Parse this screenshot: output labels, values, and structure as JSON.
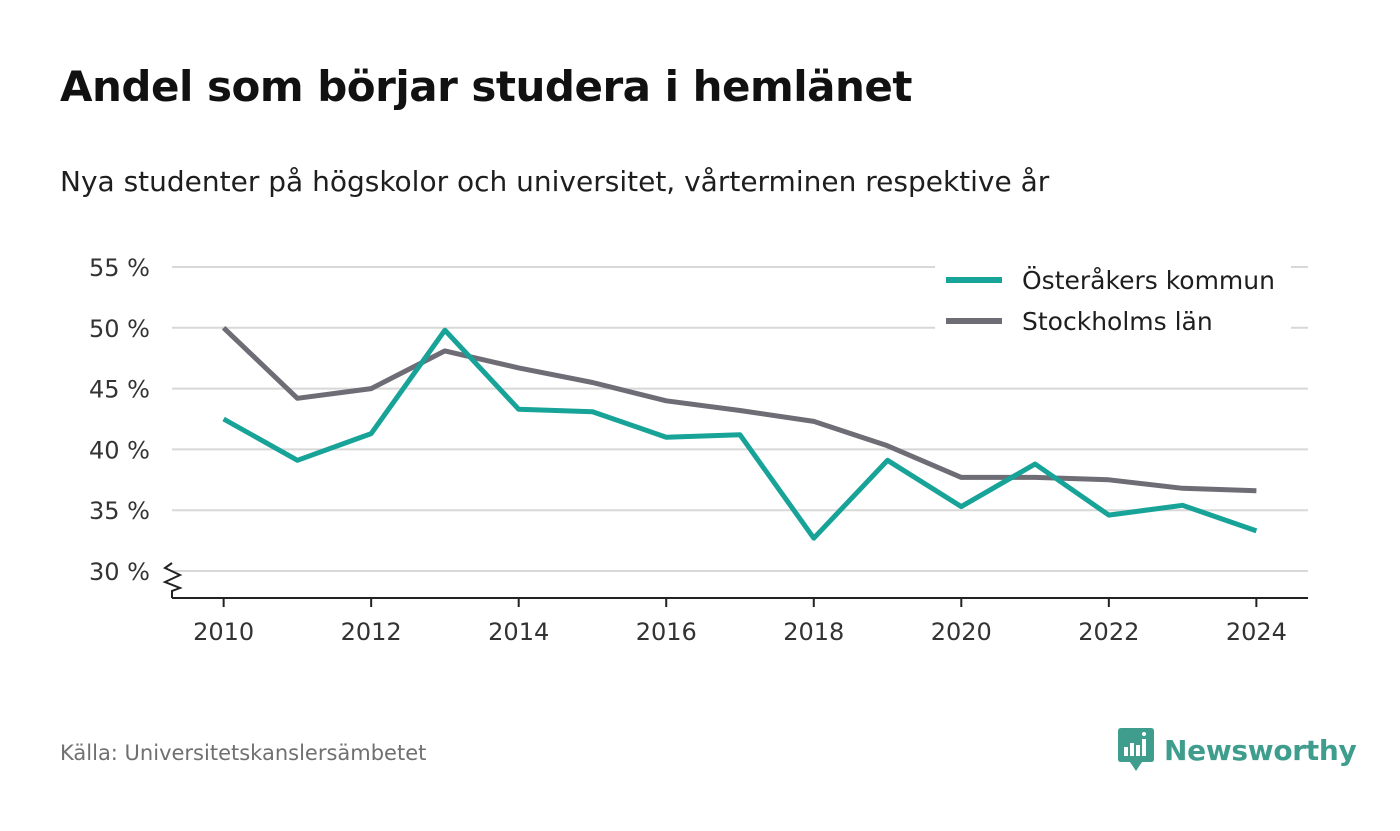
{
  "title": "Andel som börjar studera i hemlänet",
  "subtitle": "Nya studenter på högskolor och universitet, vårterminen respektive år",
  "source": "Källa: Universitetskanslersämbetet",
  "brand": {
    "name": "Newsworthy",
    "icon": "newsworthy-logo-icon",
    "color": "#3f9d8e"
  },
  "chart_data": {
    "type": "line",
    "x": [
      2010,
      2011,
      2012,
      2013,
      2014,
      2015,
      2016,
      2017,
      2018,
      2019,
      2020,
      2021,
      2022,
      2023,
      2024
    ],
    "xticks": [
      2010,
      2012,
      2014,
      2016,
      2018,
      2020,
      2022,
      2024
    ],
    "xtick_labels": [
      "2010",
      "2012",
      "2014",
      "2016",
      "2018",
      "2020",
      "2022",
      "2024"
    ],
    "yticks": [
      30,
      35,
      40,
      45,
      50,
      55
    ],
    "ytick_labels": [
      "30 %",
      "35 %",
      "40 %",
      "45 %",
      "50 %",
      "55 %"
    ],
    "ylim": [
      28,
      55
    ],
    "xlim": [
      2009.3,
      2024.7
    ],
    "axis_break": true,
    "grid": true,
    "legend_position": "top-right",
    "series": [
      {
        "name": "Österåkers kommun",
        "color": "#17a398",
        "values": [
          42.5,
          39.1,
          41.3,
          49.8,
          43.3,
          43.1,
          41.0,
          41.2,
          32.7,
          39.1,
          35.3,
          38.8,
          34.6,
          35.4,
          33.3
        ]
      },
      {
        "name": "Stockholms län",
        "color": "#6e6d76",
        "values": [
          50.0,
          44.2,
          45.0,
          48.1,
          46.7,
          45.5,
          44.0,
          43.2,
          42.3,
          40.3,
          37.7,
          37.7,
          37.5,
          36.8,
          36.6
        ]
      }
    ]
  }
}
